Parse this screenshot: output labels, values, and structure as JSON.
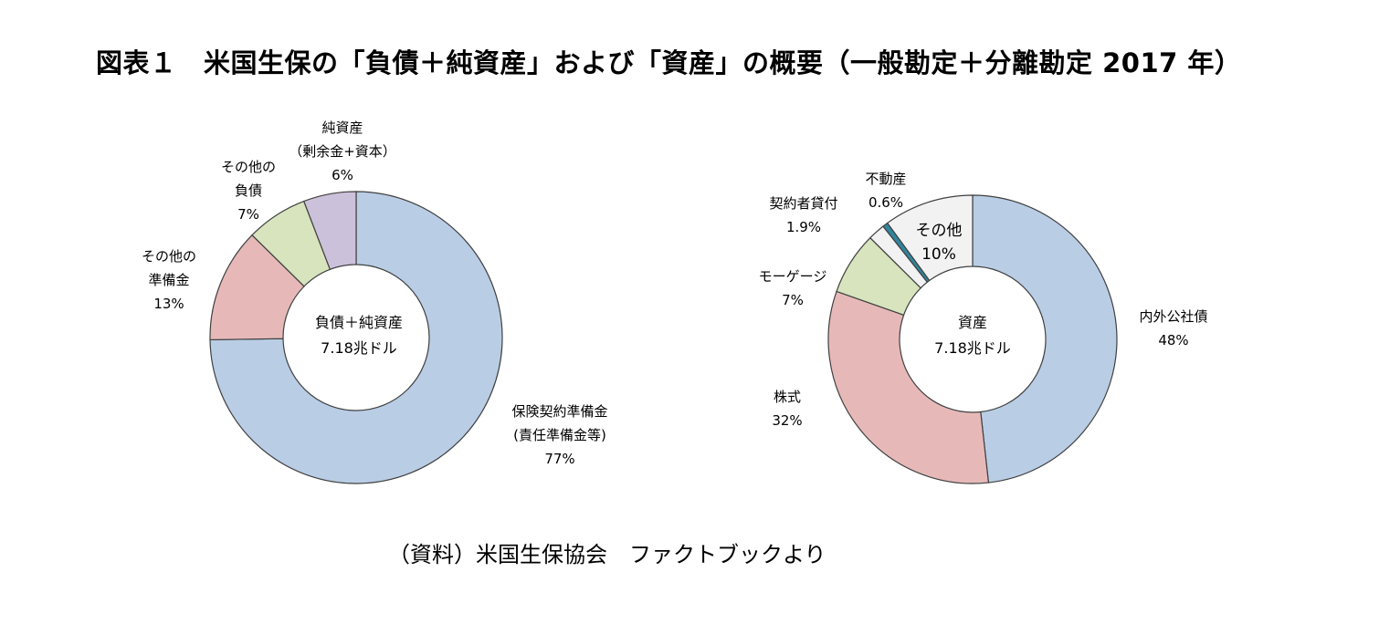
{
  "title": "図表１　米国生保の「負債＋純資産」および「資産」の概要（一般勘定＋分離勘定 2017 年）",
  "source": "（資料）米国生保協会　ファクトブックより",
  "colors": {
    "blue": "#b9cde5",
    "pink": "#e6b9b8",
    "green": "#d7e4bd",
    "purple": "#ccc1da",
    "gray": "#f2f2f2",
    "teal": "#31859c",
    "edge": "#404040"
  },
  "chart_data": [
    {
      "type": "pie",
      "donut": true,
      "center_label": [
        "負債＋純資産",
        "7.18兆ドル"
      ],
      "slices": [
        {
          "label": "保険契約準備金 (責任準備金等)",
          "label_lines": [
            "保険契約準備金",
            "(責任準備金等)"
          ],
          "value": 77,
          "value_text": "77%",
          "color": "blue"
        },
        {
          "label": "その他の準備金",
          "label_lines": [
            "その他の",
            "準備金"
          ],
          "value": 13,
          "value_text": "13%",
          "color": "pink"
        },
        {
          "label": "その他の負債",
          "label_lines": [
            "その他の",
            "負債"
          ],
          "value": 7,
          "value_text": "7%",
          "color": "green"
        },
        {
          "label": "純資産（剰余金+資本）",
          "label_lines": [
            "純資産",
            "（剰余金+資本）"
          ],
          "value": 6,
          "value_text": "6%",
          "color": "purple"
        }
      ]
    },
    {
      "type": "pie",
      "donut": true,
      "center_label": [
        "資産",
        "7.18兆ドル"
      ],
      "slices": [
        {
          "label": "内外公社債",
          "label_lines": [
            "内外公社債"
          ],
          "value": 48,
          "value_text": "48%",
          "color": "blue"
        },
        {
          "label": "株式",
          "label_lines": [
            "株式"
          ],
          "value": 32,
          "value_text": "32%",
          "color": "pink"
        },
        {
          "label": "モーゲージ",
          "label_lines": [
            "モーゲージ"
          ],
          "value": 7,
          "value_text": "7%",
          "color": "green"
        },
        {
          "label": "契約者貸付",
          "label_lines": [
            "契約者貸付"
          ],
          "value": 1.9,
          "value_text": "1.9%",
          "color": "gray"
        },
        {
          "label": "不動産",
          "label_lines": [
            "不動産"
          ],
          "value": 0.6,
          "value_text": "0.6%",
          "color": "teal"
        },
        {
          "label": "その他",
          "label_lines": [
            "その他"
          ],
          "value": 10,
          "value_text": "10%",
          "color": "gray"
        }
      ]
    }
  ]
}
